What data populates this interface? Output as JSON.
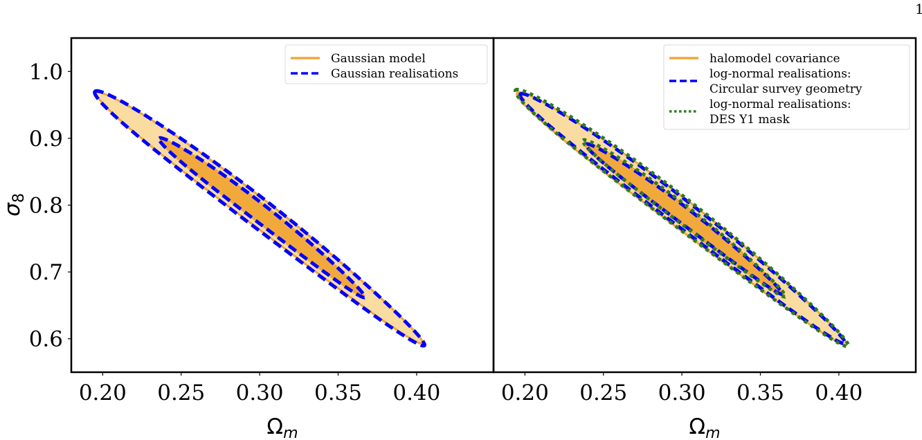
{
  "page_number": "1",
  "colors": {
    "model_line": "#f0a83a",
    "inner_fill": "#f2a93b",
    "outer_fill": "#fadca0",
    "realisation_blue": "#0000ff",
    "realisation_green": "#2e7d1a",
    "axes": "#000000",
    "legend_border": "#d9d9d9"
  },
  "chart_data": [
    {
      "type": "contour",
      "panel": "left",
      "title": "",
      "xlabel": "Ωm",
      "xlabel_base": "Ω",
      "xlabel_sub": "m",
      "ylabel": "σ8",
      "ylabel_base": "σ",
      "ylabel_sub": "8",
      "xlim": [
        0.18,
        0.449
      ],
      "ylim": [
        0.55,
        1.05
      ],
      "xticks": [
        0.2,
        0.25,
        0.3,
        0.35,
        0.4
      ],
      "xtick_labels": [
        "0.20",
        "0.25",
        "0.30",
        "0.35",
        "0.40"
      ],
      "yticks": [
        0.6,
        0.7,
        0.8,
        0.9,
        1.0
      ],
      "ytick_labels": [
        "0.6",
        "0.7",
        "0.8",
        "0.9",
        "1.0"
      ],
      "grid": false,
      "legend": {
        "placement": "top-right",
        "entries": [
          {
            "label": "Gaussian model",
            "style": "solid",
            "color_key": "model_line"
          },
          {
            "label": "Gaussian realisations",
            "style": "dashed",
            "color_key": "realisation_blue"
          }
        ]
      },
      "contours": [
        {
          "name": "Gaussian model 2-sigma",
          "level": "2σ",
          "style": "filled",
          "tip_a": [
            0.196,
            0.968
          ],
          "tip_b": [
            0.404,
            0.593
          ],
          "half_width": 0.0215,
          "bend": 0.006
        },
        {
          "name": "Gaussian model 1-sigma",
          "level": "1σ",
          "style": "filled",
          "tip_a": [
            0.237,
            0.898
          ],
          "tip_b": [
            0.366,
            0.664
          ],
          "half_width": 0.0135,
          "bend": 0.004
        },
        {
          "name": "Gaussian realisations 2-sigma",
          "level": "2σ",
          "style": "dashed",
          "tip_a": [
            0.195,
            0.97
          ],
          "tip_b": [
            0.405,
            0.59
          ],
          "half_width": 0.0225,
          "bend": 0.006
        },
        {
          "name": "Gaussian realisations 1-sigma",
          "level": "1σ",
          "style": "dashed",
          "tip_a": [
            0.236,
            0.9
          ],
          "tip_b": [
            0.367,
            0.662
          ],
          "half_width": 0.014,
          "bend": 0.004
        }
      ]
    },
    {
      "type": "contour",
      "panel": "right",
      "title": "",
      "xlabel": "Ωm",
      "xlabel_base": "Ω",
      "xlabel_sub": "m",
      "ylabel": "",
      "xlim": [
        0.18,
        0.449
      ],
      "ylim": [
        0.55,
        1.05
      ],
      "xticks": [
        0.2,
        0.25,
        0.3,
        0.35,
        0.4
      ],
      "xtick_labels": [
        "0.20",
        "0.25",
        "0.30",
        "0.35",
        "0.40"
      ],
      "yticks": [],
      "grid": false,
      "legend": {
        "placement": "top-right",
        "entries": [
          {
            "label": "halomodel covariance",
            "style": "solid",
            "color_key": "model_line"
          },
          {
            "label": "log-normal realisations:",
            "label2": "Circular survey geometry",
            "style": "dashed",
            "color_key": "realisation_blue"
          },
          {
            "label": "log-normal realisations:",
            "label2": "DES Y1 mask",
            "style": "dotted",
            "color_key": "realisation_green"
          }
        ]
      },
      "contours": [
        {
          "name": "halomodel 2-sigma",
          "level": "2σ",
          "style": "filled",
          "tip_a": [
            0.195,
            0.968
          ],
          "tip_b": [
            0.405,
            0.591
          ],
          "half_width": 0.0225,
          "bend": 0.006
        },
        {
          "name": "halomodel 1-sigma",
          "level": "1σ",
          "style": "filled",
          "tip_a": [
            0.238,
            0.893
          ],
          "tip_b": [
            0.365,
            0.665
          ],
          "half_width": 0.0135,
          "bend": 0.004
        },
        {
          "name": "circular survey 2-sigma",
          "level": "2σ",
          "style": "dashed",
          "tip_a": [
            0.197,
            0.966
          ],
          "tip_b": [
            0.404,
            0.593
          ],
          "half_width": 0.0205,
          "bend": 0.006
        },
        {
          "name": "circular survey 1-sigma",
          "level": "1σ",
          "style": "dashed",
          "tip_a": [
            0.239,
            0.891
          ],
          "tip_b": [
            0.364,
            0.667
          ],
          "half_width": 0.0125,
          "bend": 0.004
        },
        {
          "name": "DES Y1 mask 2-sigma",
          "level": "2σ",
          "style": "dotted",
          "tip_a": [
            0.194,
            0.972
          ],
          "tip_b": [
            0.406,
            0.589
          ],
          "half_width": 0.023,
          "bend": 0.006
        },
        {
          "name": "DES Y1 mask 1-sigma",
          "level": "1σ",
          "style": "dotted",
          "tip_a": [
            0.237,
            0.897
          ],
          "tip_b": [
            0.366,
            0.663
          ],
          "half_width": 0.014,
          "bend": 0.004
        }
      ]
    }
  ]
}
